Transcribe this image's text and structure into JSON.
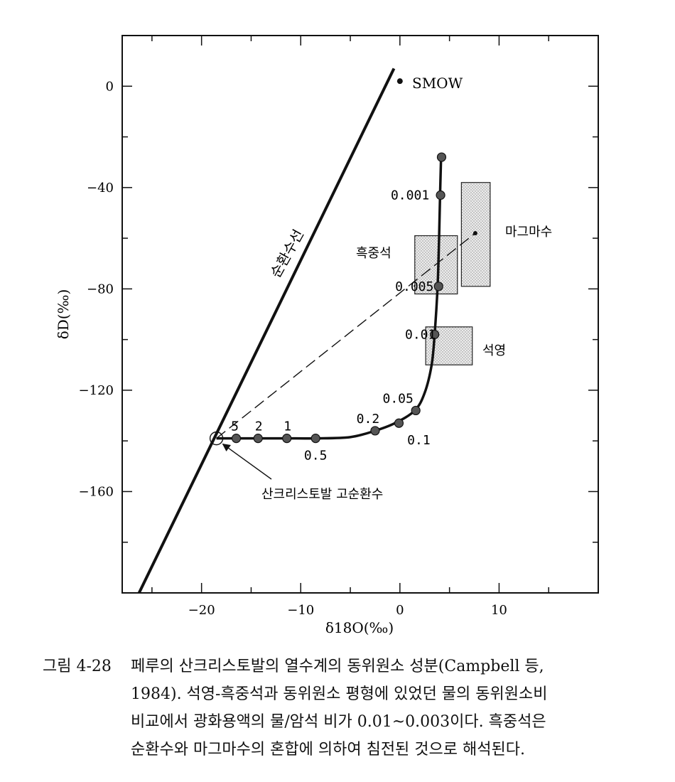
{
  "chart_data": {
    "type": "scatter",
    "xlabel": "δ18O(‰)",
    "ylabel": "δD(‰)",
    "xlim": [
      -28,
      20
    ],
    "ylim": [
      -200,
      20
    ],
    "x_ticks": [
      -20,
      -10,
      0,
      10
    ],
    "y_ticks": [
      0,
      -40,
      -80,
      -120,
      -160
    ],
    "meteoric_line": {
      "label": "순환수선",
      "points": [
        [
          -26.3,
          -200
        ],
        [
          -0.6,
          7
        ]
      ]
    },
    "curve": {
      "points": [
        [
          -18.5,
          -139
        ],
        [
          -16.5,
          -139
        ],
        [
          -14.3,
          -139
        ],
        [
          -11.4,
          -139
        ],
        [
          -8.5,
          -139
        ],
        [
          -5,
          -138.5
        ],
        [
          -2.5,
          -136
        ],
        [
          -0.5,
          -133
        ],
        [
          1.5,
          -128
        ],
        [
          2.5,
          -121
        ],
        [
          3.2,
          -110
        ],
        [
          3.5,
          -98
        ],
        [
          3.8,
          -79
        ],
        [
          3.95,
          -60
        ],
        [
          4.05,
          -43
        ],
        [
          4.15,
          -28
        ]
      ],
      "markers": [
        {
          "x": -16.5,
          "y": -139,
          "label": "5"
        },
        {
          "x": -14.3,
          "y": -139,
          "label": "2"
        },
        {
          "x": -11.4,
          "y": -139,
          "label": "1"
        },
        {
          "x": -8.5,
          "y": -139,
          "label": "0.5"
        },
        {
          "x": -2.5,
          "y": -136,
          "label": "0.2"
        },
        {
          "x": -0.1,
          "y": -133,
          "label": "0.1"
        },
        {
          "x": 1.6,
          "y": -128,
          "label": "0.05"
        },
        {
          "x": 3.5,
          "y": -98,
          "label": "0.01"
        },
        {
          "x": 3.9,
          "y": -79,
          "label": "0.005"
        },
        {
          "x": 4.1,
          "y": -43,
          "label": "0.001"
        },
        {
          "x": 4.2,
          "y": -28,
          "label": ""
        }
      ]
    },
    "smow": {
      "x": 0,
      "y": 2,
      "label": "SMOW"
    },
    "boxes": [
      {
        "label": "흑중석",
        "x": [
          1.5,
          5.8
        ],
        "y": [
          -82,
          -59
        ]
      },
      {
        "label": "마그마수",
        "x": [
          6.2,
          9.1
        ],
        "y": [
          -79,
          -38
        ]
      },
      {
        "label": "석영",
        "x": [
          2.6,
          7.3
        ],
        "y": [
          -110,
          -95
        ]
      }
    ],
    "magma_center": {
      "x": 7.6,
      "y": -58
    },
    "mixing_line": [
      [
        -18.5,
        -139
      ],
      [
        7.6,
        -58
      ]
    ],
    "origin": {
      "x": -18.5,
      "y": -139,
      "label": "산크리스토발 고순환수"
    }
  },
  "caption": {
    "label": "그림 4-28",
    "lines": [
      "페루의 산크리스토발의 열수계의 동위원소 성분(Campbell 등,",
      "1984). 석영-흑중석과 동위원소 평형에 있었던 물의 동위원소비",
      "비교에서 광화용액의 물/암석 비가 0.01~0.003이다. 흑중석은",
      "순환수와 마그마수의 혼합에 의하여 침전된 것으로 해석된다."
    ]
  }
}
